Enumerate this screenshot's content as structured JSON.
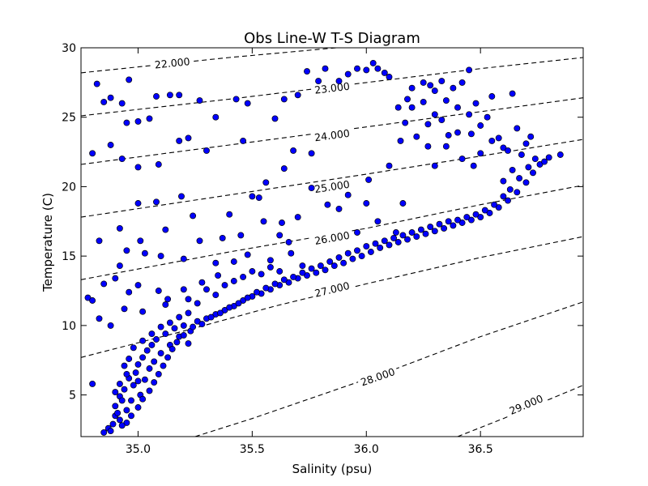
{
  "chart_data": {
    "type": "scatter",
    "title": "Obs Line-W T-S Diagram",
    "xlabel": "Salinity (psu)",
    "ylabel": "Temperature (C)",
    "xlim": [
      34.75,
      36.95
    ],
    "ylim": [
      2,
      30
    ],
    "x_ticks": [
      {
        "value": 35.0,
        "label": "35.0"
      },
      {
        "value": 35.5,
        "label": "35.5"
      },
      {
        "value": 36.0,
        "label": "36.0"
      },
      {
        "value": 36.5,
        "label": "36.5"
      }
    ],
    "y_ticks": [
      {
        "value": 5,
        "label": "5"
      },
      {
        "value": 10,
        "label": "10"
      },
      {
        "value": 15,
        "label": "15"
      },
      {
        "value": 20,
        "label": "20"
      },
      {
        "value": 25,
        "label": "25"
      },
      {
        "value": 30,
        "label": "30"
      }
    ],
    "marker_color": "#0000ff",
    "marker_edge": "#000000",
    "density_contours": [
      {
        "label": "22.000",
        "points": [
          [
            34.75,
            28.2
          ],
          [
            35.4,
            29.3
          ],
          [
            36.0,
            30.2
          ]
        ],
        "label_at": [
          35.15,
          28.9
        ]
      },
      {
        "label": "23.000",
        "points": [
          [
            34.75,
            25.1
          ],
          [
            35.4,
            26.3
          ],
          [
            36.0,
            27.5
          ],
          [
            36.5,
            28.5
          ],
          [
            36.95,
            29.3
          ]
        ],
        "label_at": [
          35.85,
          27.1
        ]
      },
      {
        "label": "24.000",
        "points": [
          [
            34.75,
            21.6
          ],
          [
            35.4,
            23.0
          ],
          [
            36.0,
            24.3
          ],
          [
            36.5,
            25.4
          ],
          [
            36.95,
            26.4
          ]
        ],
        "label_at": [
          35.85,
          23.7
        ]
      },
      {
        "label": "25.000",
        "points": [
          [
            34.75,
            17.8
          ],
          [
            35.4,
            19.4
          ],
          [
            36.0,
            20.9
          ],
          [
            36.5,
            22.2
          ],
          [
            36.95,
            23.4
          ]
        ],
        "label_at": [
          35.85,
          20.0
        ]
      },
      {
        "label": "26.000",
        "points": [
          [
            34.75,
            13.3
          ],
          [
            35.4,
            15.3
          ],
          [
            36.0,
            17.0
          ],
          [
            36.5,
            18.7
          ],
          [
            36.95,
            20.1
          ]
        ],
        "label_at": [
          35.85,
          16.3
        ]
      },
      {
        "label": "27.000",
        "points": [
          [
            34.75,
            7.7
          ],
          [
            35.2,
            9.6
          ],
          [
            35.6,
            11.4
          ],
          [
            36.0,
            13.0
          ],
          [
            36.5,
            14.9
          ],
          [
            36.95,
            16.4
          ]
        ],
        "label_at": [
          35.85,
          12.6
        ]
      },
      {
        "label": "28.000",
        "points": [
          [
            35.25,
            2.0
          ],
          [
            35.5,
            3.3
          ],
          [
            35.8,
            5.0
          ],
          [
            36.1,
            6.7
          ],
          [
            36.5,
            9.2
          ],
          [
            36.95,
            11.7
          ]
        ],
        "label_at": [
          36.05,
          6.3
        ]
      },
      {
        "label": "29.000",
        "points": [
          [
            36.4,
            2.0
          ],
          [
            36.6,
            3.3
          ],
          [
            36.95,
            5.7
          ]
        ],
        "label_at": [
          36.7,
          4.3
        ]
      }
    ],
    "points": [
      [
        34.82,
        27.4
      ],
      [
        34.85,
        26.1
      ],
      [
        34.88,
        26.4
      ],
      [
        34.93,
        26.0
      ],
      [
        34.95,
        24.6
      ],
      [
        35.0,
        24.7
      ],
      [
        35.05,
        24.9
      ],
      [
        34.96,
        27.7
      ],
      [
        35.08,
        26.5
      ],
      [
        35.14,
        26.6
      ],
      [
        35.18,
        26.6
      ],
      [
        35.27,
        26.2
      ],
      [
        35.34,
        25.0
      ],
      [
        35.43,
        26.3
      ],
      [
        35.48,
        26.0
      ],
      [
        35.6,
        24.9
      ],
      [
        34.88,
        23.0
      ],
      [
        34.8,
        22.4
      ],
      [
        34.93,
        22.0
      ],
      [
        35.0,
        21.4
      ],
      [
        35.09,
        21.6
      ],
      [
        35.18,
        23.3
      ],
      [
        35.22,
        23.5
      ],
      [
        35.3,
        22.6
      ],
      [
        35.46,
        23.3
      ],
      [
        35.68,
        22.6
      ],
      [
        35.76,
        22.4
      ],
      [
        35.64,
        21.3
      ],
      [
        35.56,
        20.3
      ],
      [
        35.5,
        19.3
      ],
      [
        35.53,
        19.2
      ],
      [
        35.0,
        18.8
      ],
      [
        35.08,
        18.9
      ],
      [
        35.19,
        19.3
      ],
      [
        35.24,
        17.9
      ],
      [
        35.4,
        18.0
      ],
      [
        35.55,
        17.5
      ],
      [
        35.63,
        17.4
      ],
      [
        35.45,
        16.5
      ],
      [
        35.37,
        16.3
      ],
      [
        35.27,
        16.1
      ],
      [
        35.12,
        16.9
      ],
      [
        35.01,
        16.1
      ],
      [
        34.92,
        17.0
      ],
      [
        34.83,
        16.1
      ],
      [
        34.95,
        15.4
      ],
      [
        35.03,
        15.2
      ],
      [
        35.1,
        15.0
      ],
      [
        35.2,
        14.8
      ],
      [
        35.34,
        14.5
      ],
      [
        35.42,
        14.6
      ],
      [
        35.48,
        15.1
      ],
      [
        35.58,
        14.7
      ],
      [
        35.67,
        15.2
      ],
      [
        35.72,
        14.3
      ],
      [
        34.92,
        14.3
      ],
      [
        34.9,
        13.4
      ],
      [
        34.85,
        13.0
      ],
      [
        34.96,
        12.4
      ],
      [
        35.0,
        12.9
      ],
      [
        35.09,
        12.5
      ],
      [
        35.13,
        11.9
      ],
      [
        35.2,
        12.6
      ],
      [
        35.28,
        13.1
      ],
      [
        35.35,
        13.6
      ],
      [
        34.78,
        12.0
      ],
      [
        34.8,
        11.8
      ],
      [
        34.83,
        10.5
      ],
      [
        34.88,
        10.0
      ],
      [
        34.94,
        11.2
      ],
      [
        35.02,
        11.0
      ],
      [
        35.12,
        11.5
      ],
      [
        35.22,
        11.9
      ],
      [
        34.8,
        5.8
      ],
      [
        34.85,
        2.3
      ],
      [
        34.87,
        2.6
      ],
      [
        34.89,
        2.9
      ],
      [
        34.9,
        3.5
      ],
      [
        34.9,
        4.2
      ],
      [
        34.92,
        4.9
      ],
      [
        34.92,
        3.2
      ],
      [
        34.94,
        5.4
      ],
      [
        34.95,
        3.9
      ],
      [
        34.96,
        6.2
      ],
      [
        34.97,
        4.6
      ],
      [
        34.98,
        5.7
      ],
      [
        34.99,
        6.6
      ],
      [
        35.0,
        7.2
      ],
      [
        35.01,
        5.0
      ],
      [
        35.02,
        7.7
      ],
      [
        35.03,
        6.1
      ],
      [
        35.04,
        8.2
      ],
      [
        35.05,
        6.9
      ],
      [
        35.06,
        8.6
      ],
      [
        35.07,
        7.4
      ],
      [
        35.08,
        9.0
      ],
      [
        35.1,
        8.0
      ],
      [
        35.12,
        9.4
      ],
      [
        35.14,
        8.6
      ],
      [
        35.16,
        9.8
      ],
      [
        35.18,
        9.2
      ],
      [
        35.2,
        10.0
      ],
      [
        35.23,
        9.6
      ],
      [
        35.26,
        10.3
      ],
      [
        35.3,
        10.5
      ],
      [
        35.34,
        10.8
      ],
      [
        35.38,
        11.1
      ],
      [
        35.42,
        11.4
      ],
      [
        35.46,
        11.8
      ],
      [
        35.5,
        12.1
      ],
      [
        35.54,
        12.3
      ],
      [
        35.58,
        12.6
      ],
      [
        35.62,
        12.9
      ],
      [
        35.66,
        13.1
      ],
      [
        35.7,
        13.4
      ],
      [
        35.74,
        13.6
      ],
      [
        35.78,
        13.8
      ],
      [
        35.82,
        14.0
      ],
      [
        35.86,
        14.3
      ],
      [
        35.9,
        14.5
      ],
      [
        35.94,
        14.8
      ],
      [
        35.98,
        15.0
      ],
      [
        36.02,
        15.3
      ],
      [
        36.06,
        15.6
      ],
      [
        36.1,
        15.8
      ],
      [
        36.14,
        16.0
      ],
      [
        36.18,
        16.2
      ],
      [
        36.22,
        16.4
      ],
      [
        36.26,
        16.6
      ],
      [
        36.3,
        16.8
      ],
      [
        36.34,
        17.0
      ],
      [
        36.38,
        17.2
      ],
      [
        36.42,
        17.4
      ],
      [
        36.46,
        17.6
      ],
      [
        36.5,
        17.8
      ],
      [
        36.54,
        18.1
      ],
      [
        36.58,
        18.5
      ],
      [
        36.62,
        19.0
      ],
      [
        36.66,
        19.6
      ],
      [
        36.7,
        20.3
      ],
      [
        36.73,
        21.0
      ],
      [
        36.76,
        21.6
      ],
      [
        36.8,
        22.1
      ],
      [
        36.85,
        22.3
      ],
      [
        36.6,
        20.4
      ],
      [
        36.64,
        21.2
      ],
      [
        36.68,
        22.3
      ],
      [
        36.7,
        23.1
      ],
      [
        36.72,
        23.6
      ],
      [
        36.6,
        22.8
      ],
      [
        36.55,
        23.3
      ],
      [
        36.5,
        22.4
      ],
      [
        36.47,
        21.5
      ],
      [
        36.42,
        22.0
      ],
      [
        36.46,
        23.8
      ],
      [
        36.5,
        24.4
      ],
      [
        36.53,
        25.0
      ],
      [
        36.58,
        23.5
      ],
      [
        36.62,
        22.6
      ],
      [
        36.66,
        24.2
      ],
      [
        36.64,
        26.7
      ],
      [
        36.55,
        26.5
      ],
      [
        36.48,
        26.0
      ],
      [
        36.45,
        25.2
      ],
      [
        36.4,
        25.7
      ],
      [
        36.35,
        26.2
      ],
      [
        36.3,
        26.9
      ],
      [
        36.28,
        27.3
      ],
      [
        36.33,
        27.6
      ],
      [
        36.38,
        27.1
      ],
      [
        36.42,
        27.5
      ],
      [
        36.45,
        28.4
      ],
      [
        36.4,
        23.9
      ],
      [
        36.35,
        22.9
      ],
      [
        36.27,
        22.9
      ],
      [
        36.22,
        23.6
      ],
      [
        36.17,
        24.6
      ],
      [
        36.14,
        25.7
      ],
      [
        36.18,
        26.3
      ],
      [
        36.2,
        27.1
      ],
      [
        36.25,
        27.5
      ],
      [
        36.1,
        27.9
      ],
      [
        36.08,
        28.2
      ],
      [
        36.05,
        28.5
      ],
      [
        36.03,
        28.9
      ],
      [
        36.0,
        28.4
      ],
      [
        35.96,
        28.5
      ],
      [
        35.92,
        28.1
      ],
      [
        35.88,
        27.6
      ],
      [
        35.82,
        28.5
      ],
      [
        35.74,
        28.3
      ],
      [
        35.7,
        26.6
      ],
      [
        35.64,
        26.3
      ],
      [
        35.79,
        27.6
      ],
      [
        36.15,
        23.3
      ],
      [
        36.1,
        21.5
      ],
      [
        36.01,
        20.5
      ],
      [
        35.92,
        19.4
      ],
      [
        35.88,
        18.4
      ],
      [
        35.83,
        18.7
      ],
      [
        35.76,
        19.9
      ],
      [
        35.7,
        17.8
      ],
      [
        35.62,
        16.5
      ],
      [
        35.66,
        16.0
      ],
      [
        35.96,
        16.7
      ],
      [
        36.05,
        17.5
      ],
      [
        36.0,
        18.8
      ],
      [
        36.16,
        18.8
      ],
      [
        36.13,
        16.7
      ],
      [
        36.3,
        21.5
      ],
      [
        36.36,
        23.7
      ],
      [
        36.27,
        24.5
      ],
      [
        36.2,
        25.7
      ],
      [
        36.25,
        26.1
      ],
      [
        36.3,
        25.2
      ],
      [
        36.33,
        24.8
      ],
      [
        34.95,
        6.5
      ],
      [
        35.0,
        6.0
      ],
      [
        34.93,
        4.6
      ],
      [
        34.95,
        3.0
      ],
      [
        34.97,
        3.5
      ],
      [
        35.0,
        4.1
      ],
      [
        35.02,
        4.7
      ],
      [
        35.05,
        5.3
      ],
      [
        35.07,
        5.9
      ],
      [
        35.09,
        6.5
      ],
      [
        35.11,
        7.1
      ],
      [
        35.13,
        7.7
      ],
      [
        35.15,
        8.3
      ],
      [
        35.17,
        8.8
      ],
      [
        35.2,
        9.3
      ],
      [
        35.22,
        8.7
      ],
      [
        35.24,
        9.9
      ],
      [
        35.28,
        10.1
      ],
      [
        35.32,
        10.6
      ],
      [
        35.36,
        10.9
      ],
      [
        35.4,
        11.3
      ],
      [
        35.44,
        11.6
      ],
      [
        35.48,
        12.0
      ],
      [
        35.52,
        12.4
      ],
      [
        35.56,
        12.7
      ],
      [
        35.6,
        13.0
      ],
      [
        35.64,
        13.3
      ],
      [
        35.68,
        13.5
      ],
      [
        35.72,
        13.8
      ],
      [
        35.76,
        14.1
      ],
      [
        35.8,
        14.3
      ],
      [
        35.84,
        14.6
      ],
      [
        35.88,
        14.9
      ],
      [
        35.92,
        15.2
      ],
      [
        35.96,
        15.4
      ],
      [
        36.0,
        15.7
      ],
      [
        36.04,
        15.9
      ],
      [
        36.08,
        16.1
      ],
      [
        36.12,
        16.3
      ],
      [
        36.16,
        16.5
      ],
      [
        36.2,
        16.7
      ],
      [
        36.24,
        16.9
      ],
      [
        36.28,
        17.1
      ],
      [
        36.32,
        17.3
      ],
      [
        36.36,
        17.5
      ],
      [
        36.4,
        17.6
      ],
      [
        36.44,
        17.8
      ],
      [
        36.48,
        18.0
      ],
      [
        36.52,
        18.3
      ],
      [
        36.56,
        18.7
      ],
      [
        36.6,
        19.3
      ],
      [
        36.63,
        19.8
      ],
      [
        36.67,
        20.6
      ],
      [
        36.71,
        21.4
      ],
      [
        36.74,
        22.0
      ],
      [
        36.78,
        21.8
      ],
      [
        35.3,
        12.6
      ],
      [
        35.34,
        12.2
      ],
      [
        35.38,
        12.9
      ],
      [
        35.42,
        13.2
      ],
      [
        35.46,
        13.5
      ],
      [
        35.5,
        13.9
      ],
      [
        35.54,
        13.7
      ],
      [
        35.58,
        14.2
      ],
      [
        35.62,
        13.9
      ],
      [
        35.26,
        11.6
      ],
      [
        35.22,
        10.9
      ],
      [
        35.18,
        10.6
      ],
      [
        35.14,
        10.2
      ],
      [
        35.1,
        9.9
      ],
      [
        35.06,
        9.4
      ],
      [
        35.02,
        8.9
      ],
      [
        34.98,
        8.4
      ],
      [
        34.96,
        7.6
      ],
      [
        34.94,
        7.1
      ],
      [
        34.92,
        5.8
      ],
      [
        34.9,
        5.2
      ],
      [
        34.91,
        3.7
      ],
      [
        34.88,
        2.4
      ],
      [
        34.93,
        2.8
      ]
    ]
  }
}
